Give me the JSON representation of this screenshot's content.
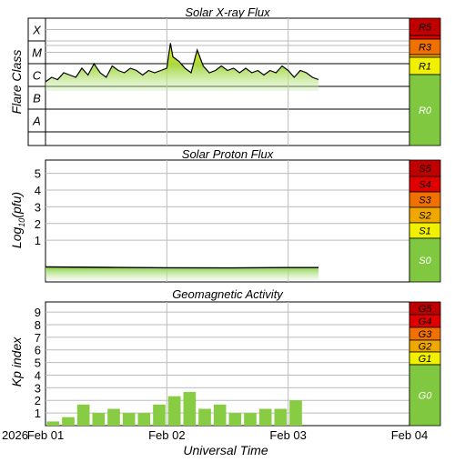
{
  "chart_data": [
    {
      "type": "area",
      "title": "Solar X-ray Flux",
      "ylabel": "Flare Class",
      "y_categories": [
        "A",
        "B",
        "C",
        "M",
        "X"
      ],
      "ylim_log10": [
        -8.6,
        -3.0
      ],
      "grid": true,
      "x_start": "Feb 01",
      "x": [
        0.0,
        0.05,
        0.1,
        0.15,
        0.2,
        0.25,
        0.3,
        0.35,
        0.4,
        0.45,
        0.5,
        0.55,
        0.6,
        0.65,
        0.7,
        0.75,
        0.8,
        0.85,
        0.9,
        0.95,
        1.0,
        1.03,
        1.05,
        1.1,
        1.15,
        1.2,
        1.25,
        1.3,
        1.35,
        1.4,
        1.45,
        1.5,
        1.55,
        1.6,
        1.65,
        1.7,
        1.75,
        1.8,
        1.85,
        1.9,
        1.95,
        2.0,
        2.05,
        2.1,
        2.15,
        2.2,
        2.25
      ],
      "series": [
        {
          "log10_flux": [
            -5.8,
            -5.6,
            -5.7,
            -5.4,
            -5.5,
            -5.6,
            -5.2,
            -5.5,
            -5.0,
            -5.4,
            -5.6,
            -5.1,
            -5.3,
            -5.4,
            -5.2,
            -5.3,
            -5.5,
            -5.3,
            -5.4,
            -5.3,
            -5.2,
            -4.1,
            -4.7,
            -4.9,
            -5.2,
            -5.4,
            -4.4,
            -5.1,
            -5.4,
            -5.3,
            -5.1,
            -5.3,
            -5.2,
            -5.4,
            -5.2,
            -5.4,
            -5.3,
            -5.5,
            -5.3,
            -5.4,
            -5.1,
            -5.3,
            -5.6,
            -5.3,
            -5.4,
            -5.6,
            -5.7
          ]
        }
      ],
      "scale": [
        {
          "label": "R5",
          "color": "#c00000"
        },
        {
          "label": "R4",
          "color": "#e00000"
        },
        {
          "label": "R3",
          "color": "#f07000"
        },
        {
          "label": "R2",
          "color": "#f0a800"
        },
        {
          "label": "R1",
          "color": "#f0f000"
        },
        {
          "label": "R0",
          "color": "#80c840"
        }
      ]
    },
    {
      "type": "area",
      "title": "Solar Proton Flux",
      "ylabel": "Log10(pfu)",
      "ylabel_base": "Log",
      "ylabel_sub": "10",
      "ylabel_rest": "(pfu)",
      "y_ticks": [
        1,
        2,
        3,
        4,
        5
      ],
      "ylim": [
        -1.5,
        5.8
      ],
      "grid": true,
      "x": [
        0.0,
        0.5,
        1.0,
        1.5,
        2.0,
        2.25
      ],
      "series": [
        {
          "log10_pfu": [
            -0.6,
            -0.63,
            -0.65,
            -0.66,
            -0.64,
            -0.64
          ]
        }
      ],
      "scale": [
        {
          "label": "S5",
          "color": "#c00000"
        },
        {
          "label": "S4",
          "color": "#e00000"
        },
        {
          "label": "S3",
          "color": "#f07000"
        },
        {
          "label": "S2",
          "color": "#f0a800"
        },
        {
          "label": "S1",
          "color": "#f0f000"
        },
        {
          "label": "S0",
          "color": "#80c840"
        }
      ]
    },
    {
      "type": "bar",
      "title": "Geomagnetic Activity",
      "ylabel": "Kp index",
      "y_ticks": [
        1,
        2,
        3,
        4,
        5,
        6,
        7,
        8,
        9
      ],
      "ylim": [
        0,
        9.8
      ],
      "grid": true,
      "bar_x": [
        0.0,
        0.125,
        0.25,
        0.375,
        0.5,
        0.625,
        0.75,
        0.875,
        1.0,
        1.125,
        1.25,
        1.375,
        1.5,
        1.625,
        1.75,
        1.875,
        2.0,
        2.125
      ],
      "values": [
        0.33,
        0.67,
        1.67,
        1.0,
        1.33,
        1.0,
        1.0,
        1.67,
        2.33,
        2.67,
        1.33,
        1.67,
        1.0,
        1.0,
        1.33,
        1.33,
        2.0,
        0.0
      ],
      "scale": [
        {
          "label": "G5",
          "color": "#c00000"
        },
        {
          "label": "G4",
          "color": "#e00000"
        },
        {
          "label": "G3",
          "color": "#f07000"
        },
        {
          "label": "G2",
          "color": "#f0a800"
        },
        {
          "label": "G1",
          "color": "#f0f000"
        },
        {
          "label": "G0",
          "color": "#80c840"
        }
      ]
    }
  ],
  "x_axis": {
    "title": "Universal Time",
    "year": "2026",
    "tick_labels": [
      "Feb 01",
      "Feb 02",
      "Feb 03",
      "Feb 04"
    ],
    "tick_days": [
      0,
      1,
      2,
      3
    ]
  }
}
